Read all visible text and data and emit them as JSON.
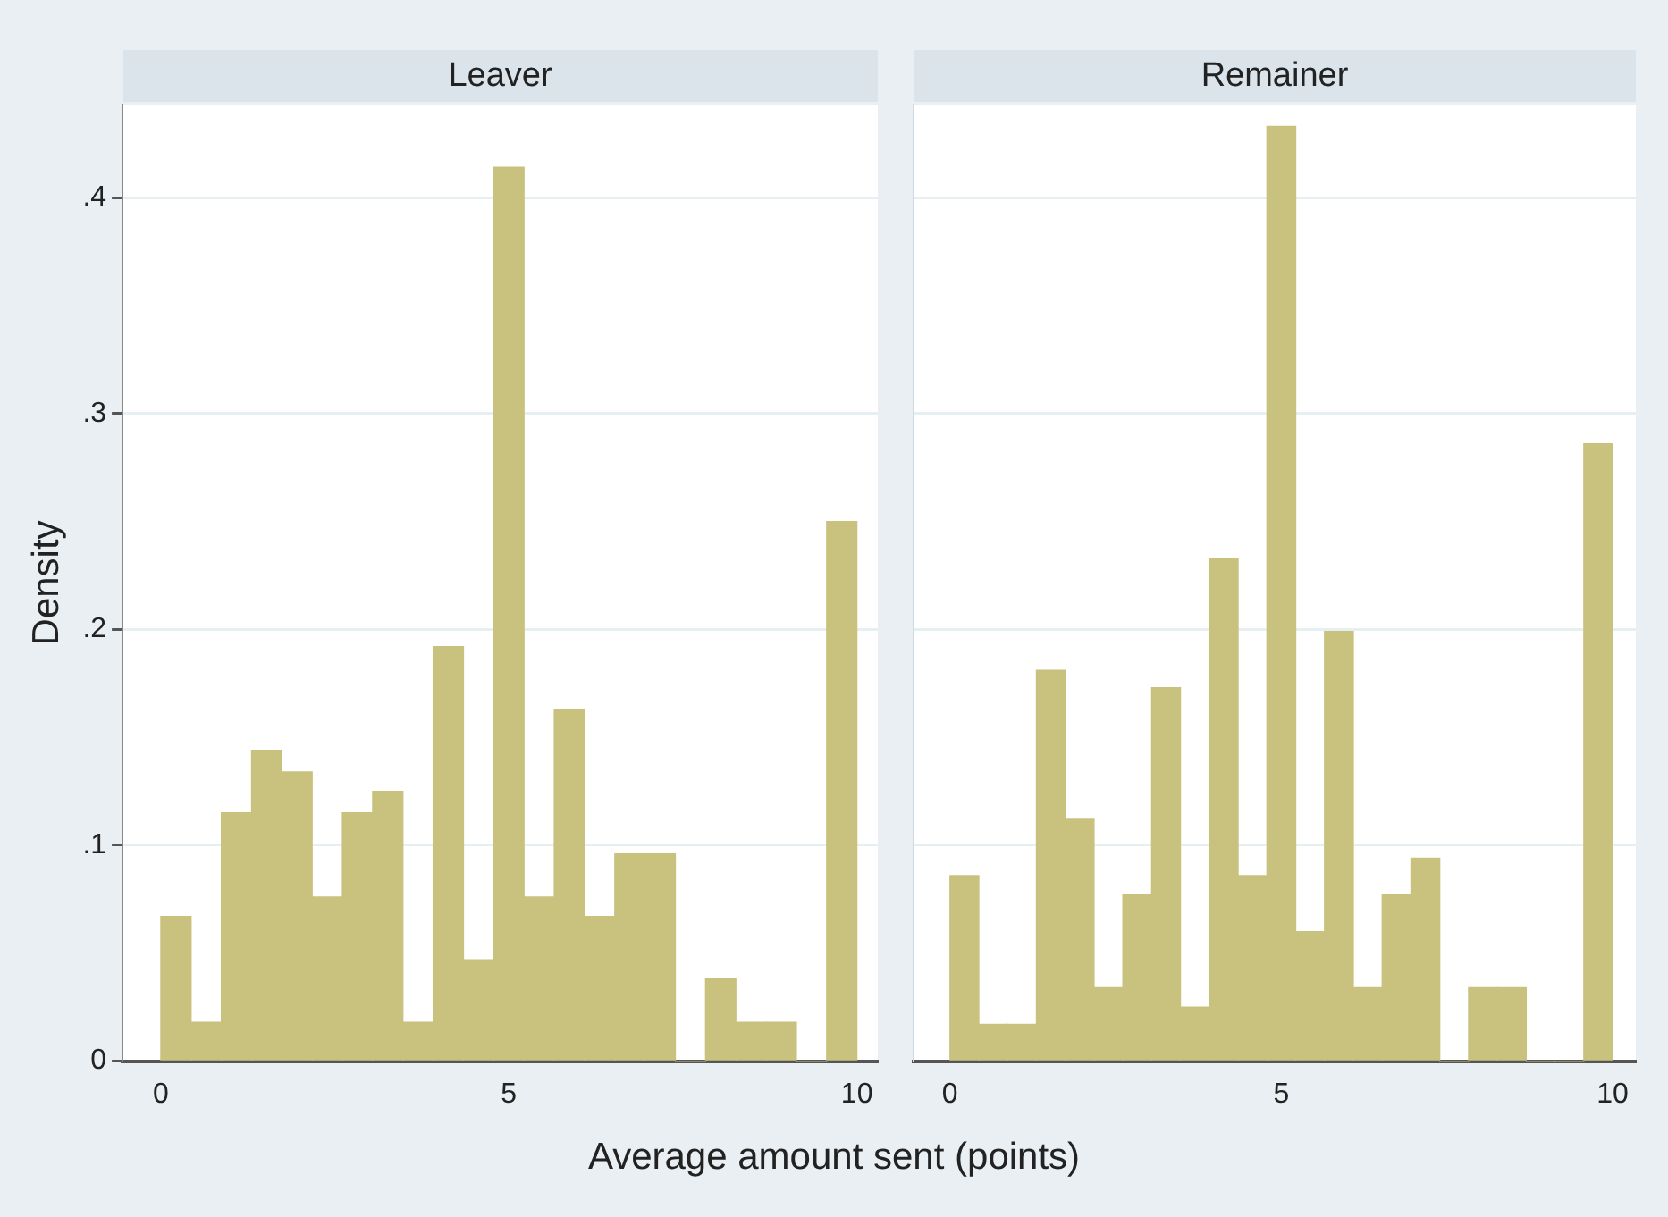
{
  "chart_data": [
    {
      "type": "histogram",
      "title": "Leaver",
      "xlabel": "Average amount sent (points)",
      "ylabel": "Density",
      "color": "#c9c27e",
      "grid": "y",
      "bins": [
        0,
        0.435,
        0.87,
        1.304,
        1.739,
        2.174,
        2.609,
        3.043,
        3.478,
        3.913,
        4.348,
        4.783,
        5.217,
        5.652,
        6.087,
        6.522,
        6.957,
        7.391,
        7.826,
        8.261,
        8.696,
        9.13,
        9.565,
        10
      ],
      "values": [
        0.067,
        0.018,
        0.115,
        0.144,
        0.134,
        0.076,
        0.115,
        0.125,
        0.018,
        0.192,
        0.047,
        0.414,
        0.076,
        0.163,
        0.067,
        0.096,
        0.096,
        0,
        0.038,
        0.018,
        0.018,
        0,
        0.25
      ],
      "xlim": [
        -0.55,
        10.3
      ],
      "xticks": [
        0,
        5,
        10
      ],
      "ylim": [
        0,
        0.443
      ],
      "yticks": [
        0,
        {
          "value": 0.1,
          "label": ".1"
        },
        {
          "value": 0.2,
          "label": ".2"
        },
        {
          "value": 0.3,
          "label": ".3"
        },
        {
          "value": 0.4,
          "label": ".4"
        }
      ]
    },
    {
      "type": "histogram",
      "title": "Remainer",
      "color": "#c9c27e",
      "grid": "y",
      "tick_labels": "x",
      "bins": [
        0,
        0.435,
        0.87,
        1.304,
        1.739,
        2.174,
        2.609,
        3.043,
        3.478,
        3.913,
        4.348,
        4.783,
        5.217,
        5.652,
        6.087,
        6.522,
        6.957,
        7.391,
        7.826,
        8.261,
        8.696,
        9.13,
        9.565,
        10
      ],
      "values": [
        0.086,
        0.017,
        0.017,
        0.181,
        0.112,
        0.034,
        0.077,
        0.173,
        0.025,
        0.233,
        0.086,
        0.433,
        0.06,
        0.199,
        0.034,
        0.077,
        0.094,
        0,
        0.034,
        0.034,
        0,
        0,
        0.286
      ],
      "xlim": [
        -0.55,
        10.35
      ],
      "xticks": [
        0,
        5,
        10
      ],
      "ylim": [
        0,
        0.443
      ],
      "yticks": [
        0,
        0.1,
        0.2,
        0.3,
        0.4
      ]
    }
  ]
}
